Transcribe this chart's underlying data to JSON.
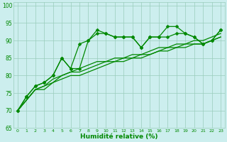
{
  "xlabel": "Humidité relative (%)",
  "xlim": [
    -0.5,
    23.5
  ],
  "ylim": [
    65,
    101
  ],
  "yticks": [
    65,
    70,
    75,
    80,
    85,
    90,
    95,
    100
  ],
  "xticks": [
    0,
    1,
    2,
    3,
    4,
    5,
    6,
    7,
    8,
    9,
    10,
    11,
    12,
    13,
    14,
    15,
    16,
    17,
    18,
    19,
    20,
    21,
    22,
    23
  ],
  "background_color": "#cceeee",
  "grid_color": "#99ccbb",
  "line_color": "#008800",
  "lines": [
    {
      "y": [
        70,
        74,
        77,
        78,
        80,
        85,
        82,
        82,
        90,
        92,
        92,
        91,
        91,
        91,
        88,
        91,
        91,
        91,
        92,
        92,
        91,
        89,
        90,
        93
      ],
      "marker": true
    },
    {
      "y": [
        70,
        74,
        77,
        78,
        80,
        85,
        82,
        89,
        90,
        93,
        92,
        91,
        91,
        91,
        88,
        91,
        91,
        94,
        94,
        92,
        91,
        89,
        90,
        93
      ],
      "marker": true
    },
    {
      "y": [
        70,
        73,
        76,
        77,
        79,
        80,
        81,
        82,
        83,
        84,
        84,
        85,
        85,
        86,
        86,
        87,
        88,
        88,
        89,
        89,
        90,
        90,
        91,
        92
      ],
      "marker": false
    },
    {
      "y": [
        70,
        73,
        76,
        77,
        78,
        80,
        81,
        81,
        82,
        83,
        84,
        84,
        85,
        85,
        86,
        86,
        87,
        88,
        88,
        89,
        89,
        89,
        90,
        91
      ],
      "marker": false
    },
    {
      "y": [
        70,
        73,
        76,
        76,
        78,
        79,
        80,
        80,
        81,
        82,
        83,
        84,
        84,
        85,
        85,
        86,
        87,
        87,
        88,
        88,
        89,
        89,
        90,
        91
      ],
      "marker": false
    }
  ],
  "xtick_fontsize": 4.5,
  "ytick_fontsize": 5.5,
  "xlabel_fontsize": 6.5,
  "linewidth": 0.9,
  "markersize": 2.5
}
